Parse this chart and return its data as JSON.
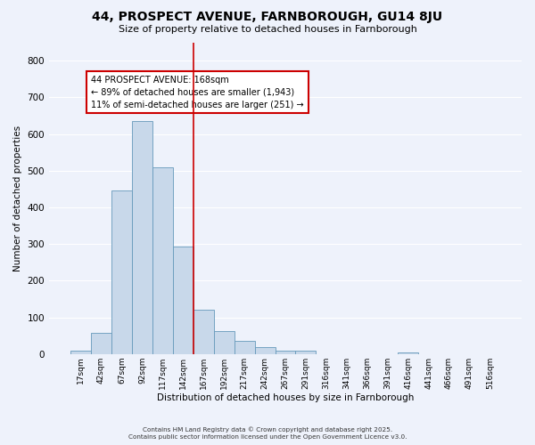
{
  "title": "44, PROSPECT AVENUE, FARNBOROUGH, GU14 8JU",
  "subtitle": "Size of property relative to detached houses in Farnborough",
  "xlabel": "Distribution of detached houses by size in Farnborough",
  "ylabel": "Number of detached properties",
  "bar_labels": [
    "17sqm",
    "42sqm",
    "67sqm",
    "92sqm",
    "117sqm",
    "142sqm",
    "167sqm",
    "192sqm",
    "217sqm",
    "242sqm",
    "267sqm",
    "291sqm",
    "316sqm",
    "341sqm",
    "366sqm",
    "391sqm",
    "416sqm",
    "441sqm",
    "466sqm",
    "491sqm",
    "516sqm"
  ],
  "bar_values": [
    10,
    57,
    447,
    635,
    510,
    293,
    120,
    63,
    35,
    20,
    9,
    9,
    0,
    0,
    0,
    0,
    5,
    0,
    0,
    0,
    0
  ],
  "bar_color": "#c8d8ea",
  "bar_edgecolor": "#6699bb",
  "ylim": [
    0,
    850
  ],
  "yticks": [
    0,
    100,
    200,
    300,
    400,
    500,
    600,
    700,
    800
  ],
  "redline_x": 5.5,
  "annotation_title": "44 PROSPECT AVENUE: 168sqm",
  "annotation_line1": "← 89% of detached houses are smaller (1,943)",
  "annotation_line2": "11% of semi-detached houses are larger (251) →",
  "annotation_box_color": "#ffffff",
  "annotation_box_edgecolor": "#cc0000",
  "redline_color": "#cc0000",
  "footer1": "Contains HM Land Registry data © Crown copyright and database right 2025.",
  "footer2": "Contains public sector information licensed under the Open Government Licence v3.0.",
  "bg_color": "#eef2fb",
  "grid_color": "#ffffff"
}
